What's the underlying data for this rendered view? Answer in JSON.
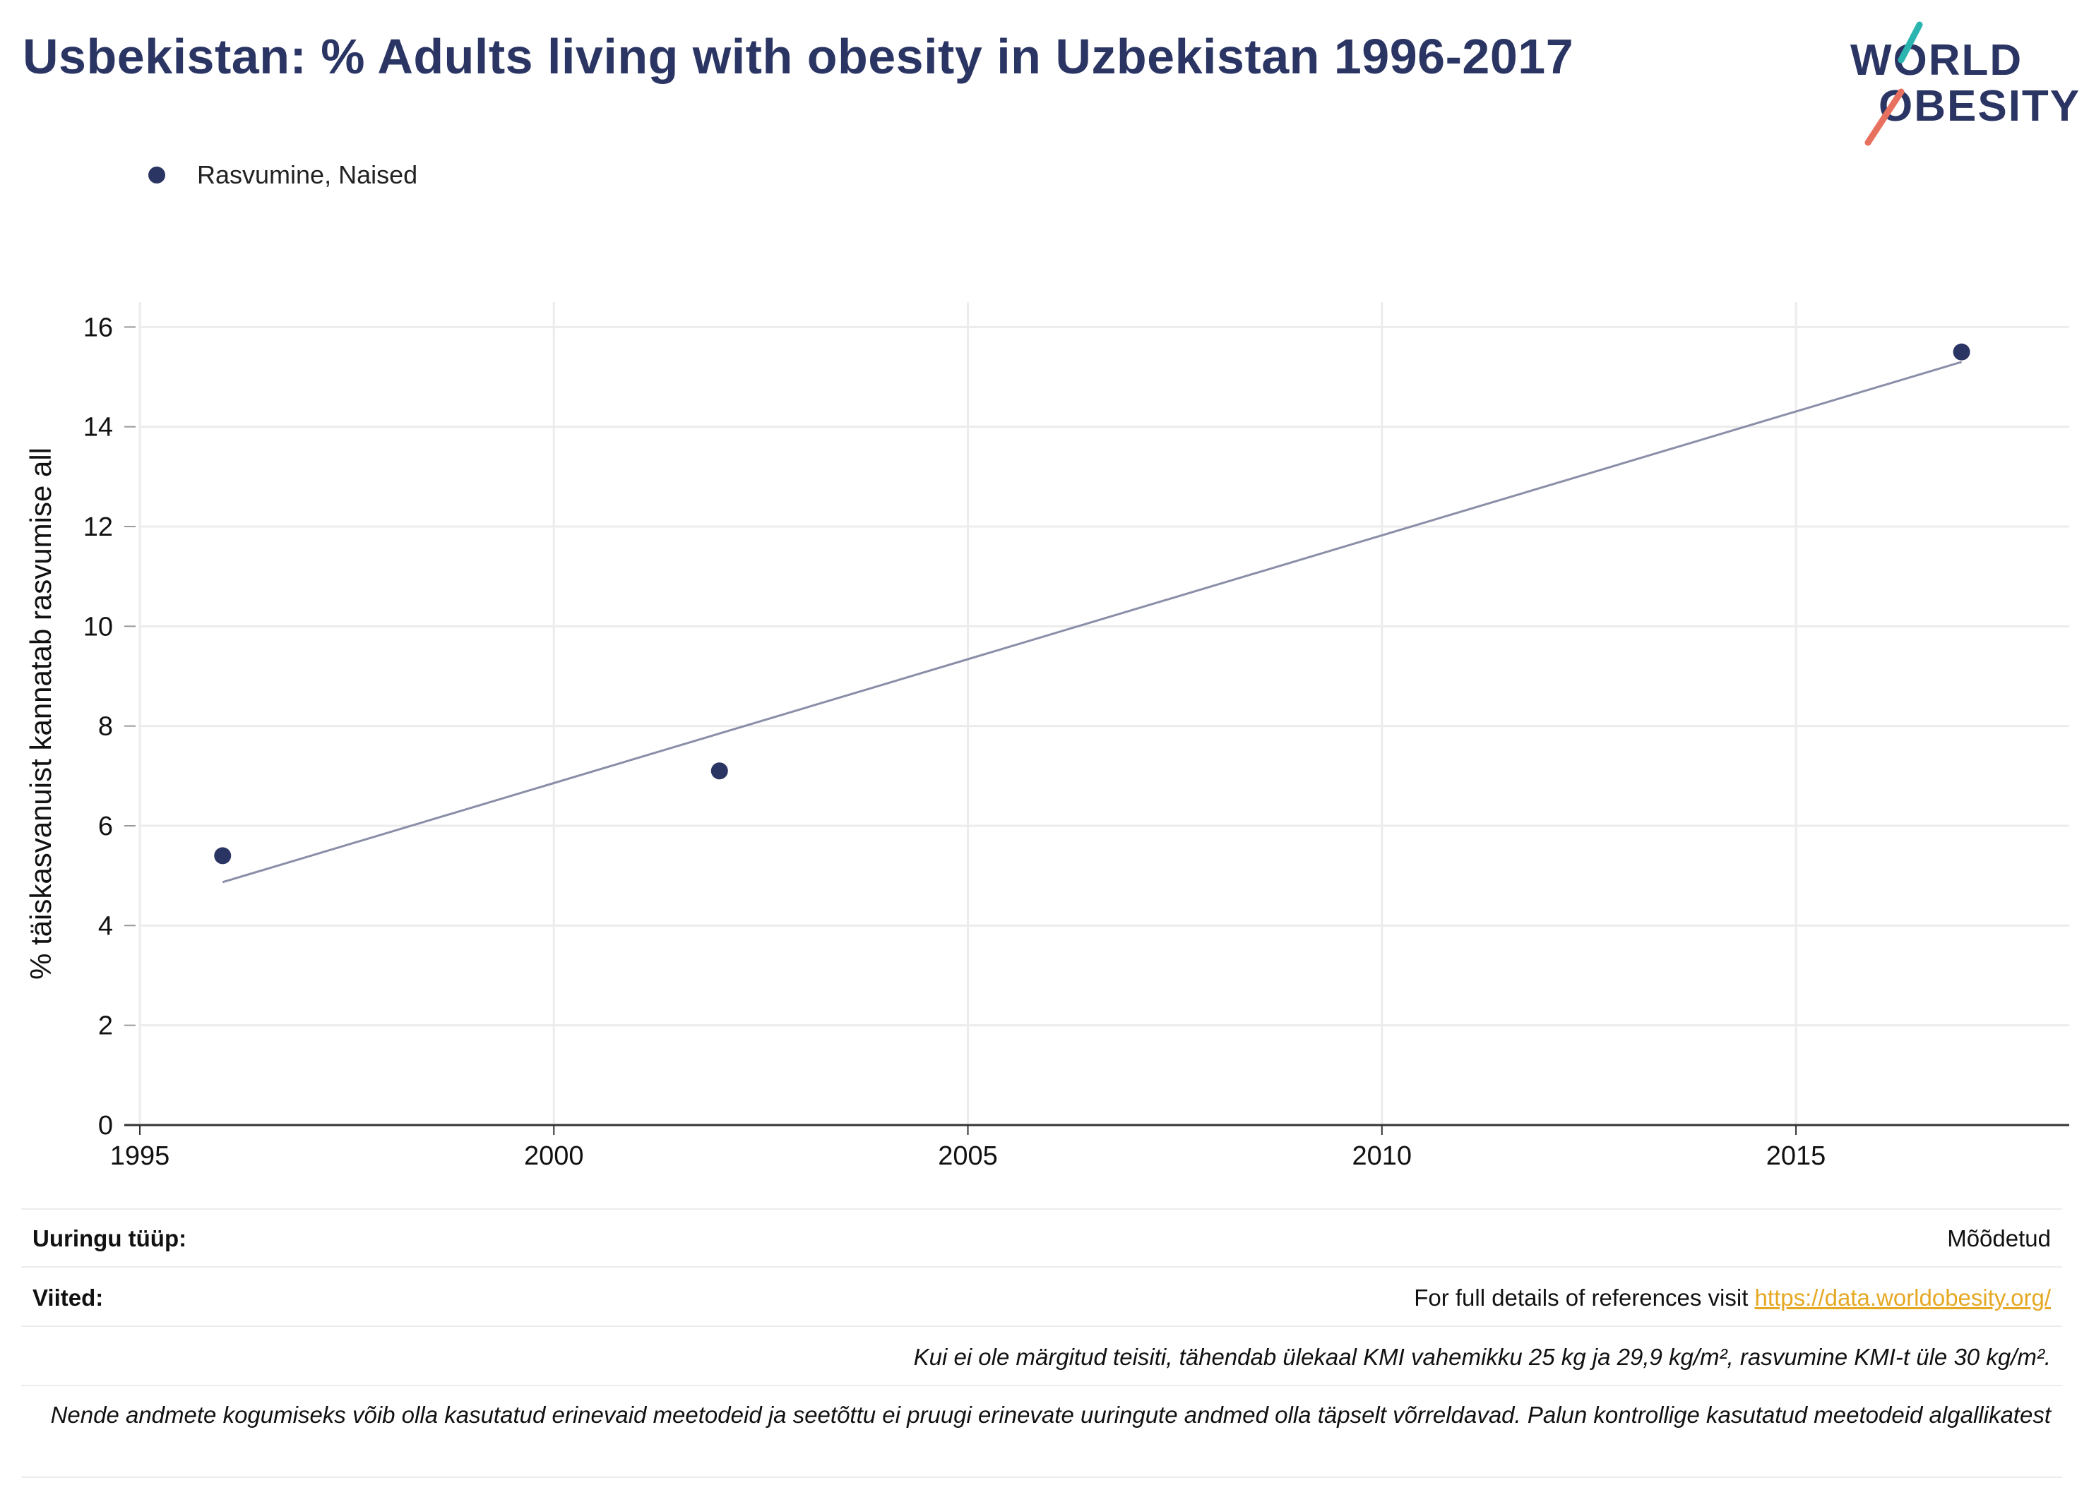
{
  "title": "Usbekistan: % Adults living with obesity in Uzbekistan 1996-2017",
  "logo": {
    "line1": "WORLD",
    "line2": "OBESITY"
  },
  "legend": {
    "label": "Rasvumine, Naised",
    "color": "#2b3563"
  },
  "chart_data": {
    "type": "scatter",
    "ylabel": "% täiskasvanuist kannatab rasvumise all",
    "xlabel": "",
    "xlim": [
      1995,
      2018.3
    ],
    "ylim": [
      0,
      16.5
    ],
    "xticks": [
      1995,
      2000,
      2005,
      2010,
      2015
    ],
    "yticks": [
      0,
      2,
      4,
      6,
      8,
      10,
      12,
      14,
      16
    ],
    "grid": true,
    "series": [
      {
        "name": "Rasvumine, Naised",
        "color": "#2b3563",
        "x": [
          1996,
          2002,
          2017
        ],
        "y": [
          5.4,
          7.1,
          15.5
        ]
      }
    ],
    "trendline": {
      "color": "#8a8fa8",
      "x": [
        1996,
        2017
      ],
      "y": [
        4.87,
        15.3
      ]
    }
  },
  "footer": {
    "study_type_key": "Uuringu tüüp:",
    "study_type_val": "Mõõdetud",
    "refs_key": "Viited:",
    "refs_text": "For full details of references visit ",
    "refs_link": "https://data.worldobesity.org/",
    "note1": "Kui ei ole märgitud teisiti, tähendab ülekaal KMI vahemikku 25 kg ja 29,9 kg/m², rasvumine KMI-t üle 30 kg/m².",
    "note2": "Nende andmete kogumiseks võib olla kasutatud erinevaid meetodeid ja seetõttu ei pruugi erinevate uuringute andmed olla täpselt võrreldavad. Palun kontrollige kasutatud meetodeid algallikatest"
  }
}
